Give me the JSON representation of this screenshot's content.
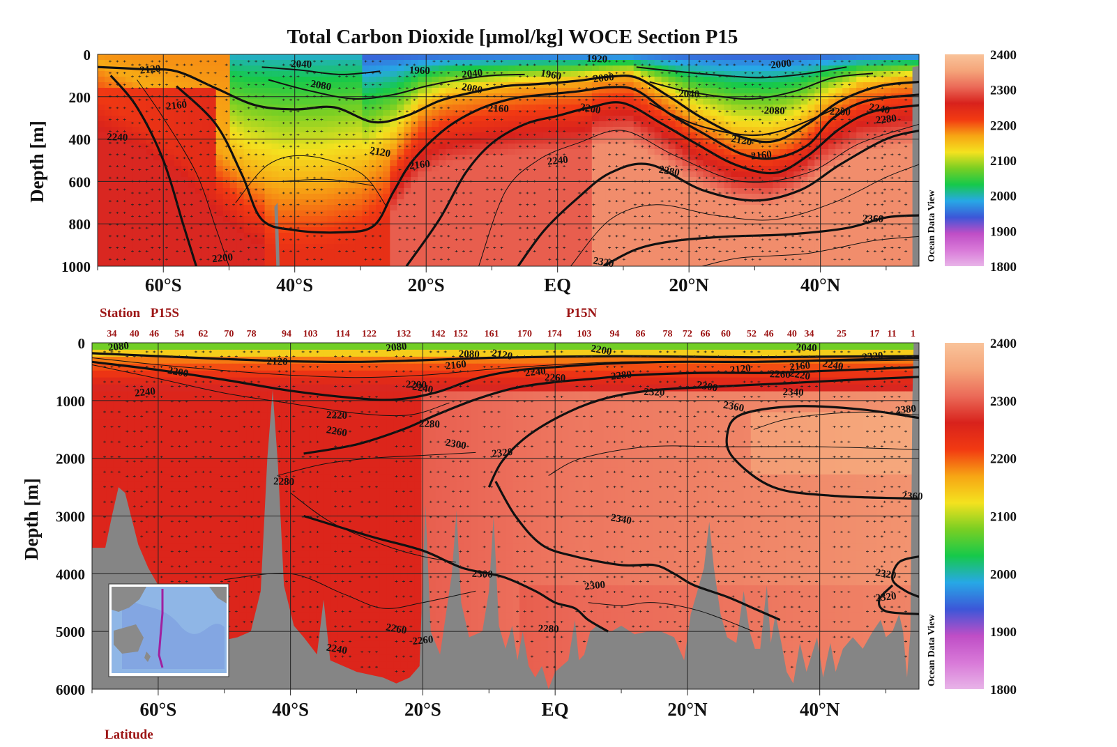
{
  "title": "Total Carbon Dioxide [µmol/kg]  WOCE Section P15",
  "colors": {
    "land": "#858585",
    "scale": [
      "#e8b4e8",
      "#d879d8",
      "#bf4ec6",
      "#3c57d8",
      "#27a8e6",
      "#16c94a",
      "#7acf23",
      "#f4e21f",
      "#f7a514",
      "#f23a12",
      "#d8221c",
      "#eb6a58",
      "#f5a57a",
      "#f9c39a"
    ],
    "station_text": "#9c1414",
    "contour": "#111111"
  },
  "watermark": "Ocean Data View",
  "chart_data": [
    {
      "type": "heatmap",
      "id": "upper-panel",
      "ylabel": "Depth [m]",
      "yticks": [
        "0",
        "200",
        "400",
        "600",
        "800",
        "1000"
      ],
      "ylim": [
        1000,
        0
      ],
      "xlim": [
        -70,
        55
      ],
      "xticks": [
        {
          "value": -60,
          "label": "60°S"
        },
        {
          "value": -40,
          "label": "40°S"
        },
        {
          "value": -20,
          "label": "20°S"
        },
        {
          "value": 0,
          "label": "EQ"
        },
        {
          "value": 20,
          "label": "20°N"
        },
        {
          "value": 40,
          "label": "40°N"
        }
      ],
      "colorbar": {
        "range": [
          1800,
          2400
        ],
        "ticks": [
          "2400",
          "2300",
          "2200",
          "2100",
          "2000",
          "1900",
          "1800"
        ]
      },
      "grid": true,
      "contour_labels": [
        {
          "lat": -62,
          "depth": 70,
          "value": "2120"
        },
        {
          "lat": -39,
          "depth": 45,
          "value": "2040"
        },
        {
          "lat": -36,
          "depth": 145,
          "value": "2080"
        },
        {
          "lat": -58,
          "depth": 240,
          "value": "2160"
        },
        {
          "lat": -67,
          "depth": 390,
          "value": "2240"
        },
        {
          "lat": -27,
          "depth": 460,
          "value": "2120"
        },
        {
          "lat": -21,
          "depth": 520,
          "value": "2160"
        },
        {
          "lat": -21,
          "depth": 75,
          "value": "1960"
        },
        {
          "lat": -13,
          "depth": 160,
          "value": "2080"
        },
        {
          "lat": -13,
          "depth": 90,
          "value": "2040"
        },
        {
          "lat": -9,
          "depth": 255,
          "value": "2160"
        },
        {
          "lat": -1,
          "depth": 95,
          "value": "1960"
        },
        {
          "lat": 7,
          "depth": 110,
          "value": "2000"
        },
        {
          "lat": 6,
          "depth": 20,
          "value": "1920"
        },
        {
          "lat": 5,
          "depth": 255,
          "value": "2200"
        },
        {
          "lat": 0,
          "depth": 500,
          "value": "2240"
        },
        {
          "lat": 20,
          "depth": 185,
          "value": "2040"
        },
        {
          "lat": 17,
          "depth": 550,
          "value": "2280"
        },
        {
          "lat": 34,
          "depth": 45,
          "value": "2000"
        },
        {
          "lat": 33,
          "depth": 265,
          "value": "2080"
        },
        {
          "lat": 28,
          "depth": 405,
          "value": "2120"
        },
        {
          "lat": 31,
          "depth": 475,
          "value": "2160"
        },
        {
          "lat": 43,
          "depth": 270,
          "value": "2200"
        },
        {
          "lat": 49,
          "depth": 255,
          "value": "2240"
        },
        {
          "lat": 50,
          "depth": 305,
          "value": "2280"
        },
        {
          "lat": 48,
          "depth": 775,
          "value": "2360"
        },
        {
          "lat": 7,
          "depth": 980,
          "value": "2320"
        },
        {
          "lat": -51,
          "depth": 960,
          "value": "2200"
        }
      ]
    },
    {
      "type": "heatmap",
      "id": "lower-panel",
      "ylabel": "Depth [m]",
      "yticks": [
        "0",
        "1000",
        "2000",
        "3000",
        "4000",
        "5000",
        "6000"
      ],
      "ylim": [
        6000,
        0
      ],
      "xlim": [
        -70,
        55
      ],
      "xticks": [
        {
          "value": -60,
          "label": "60°S"
        },
        {
          "value": -40,
          "label": "40°S"
        },
        {
          "value": -20,
          "label": "20°S"
        },
        {
          "value": 0,
          "label": "EQ"
        },
        {
          "value": 20,
          "label": "20°N"
        },
        {
          "value": 40,
          "label": "40°N"
        }
      ],
      "xlabel": "Latitude",
      "colorbar": {
        "range": [
          1800,
          2400
        ],
        "ticks": [
          "2400",
          "2300",
          "2200",
          "2100",
          "2000",
          "1900",
          "1800"
        ]
      },
      "grid": true,
      "station_label": "Station",
      "section_labels": [
        {
          "lat": -59,
          "text": "P15S"
        },
        {
          "lat": 4,
          "text": "P15N"
        }
      ],
      "stations": [
        {
          "lat": -67,
          "label": "34"
        },
        {
          "lat": -63.6,
          "label": "40"
        },
        {
          "lat": -60.6,
          "label": "46"
        },
        {
          "lat": -56.8,
          "label": "54"
        },
        {
          "lat": -53.2,
          "label": "62"
        },
        {
          "lat": -49.3,
          "label": "70"
        },
        {
          "lat": -45.9,
          "label": "78"
        },
        {
          "lat": -40.6,
          "label": "94"
        },
        {
          "lat": -37,
          "label": "103"
        },
        {
          "lat": -32.1,
          "label": "114"
        },
        {
          "lat": -28.1,
          "label": "122"
        },
        {
          "lat": -22.9,
          "label": "132"
        },
        {
          "lat": -17.7,
          "label": "142"
        },
        {
          "lat": -14.3,
          "label": "152"
        },
        {
          "lat": -9.6,
          "label": "161"
        },
        {
          "lat": -4.6,
          "label": "170"
        },
        {
          "lat": -0.1,
          "label": "174"
        },
        {
          "lat": 4.4,
          "label": "103"
        },
        {
          "lat": 9,
          "label": "94"
        },
        {
          "lat": 12.9,
          "label": "86"
        },
        {
          "lat": 17,
          "label": "78"
        },
        {
          "lat": 20,
          "label": "72"
        },
        {
          "lat": 22.7,
          "label": "66"
        },
        {
          "lat": 25.8,
          "label": "60"
        },
        {
          "lat": 29.7,
          "label": "52"
        },
        {
          "lat": 32.3,
          "label": "46"
        },
        {
          "lat": 35.8,
          "label": "40"
        },
        {
          "lat": 38.4,
          "label": "34"
        },
        {
          "lat": 43.3,
          "label": "25"
        },
        {
          "lat": 48.3,
          "label": "17"
        },
        {
          "lat": 50.9,
          "label": "11"
        },
        {
          "lat": 54.1,
          "label": "1"
        }
      ],
      "contour_labels": [
        {
          "lat": -66,
          "depth": 60,
          "value": "2080"
        },
        {
          "lat": -42,
          "depth": 320,
          "value": "2120"
        },
        {
          "lat": -57,
          "depth": 500,
          "value": "2200"
        },
        {
          "lat": -62,
          "depth": 850,
          "value": "2240"
        },
        {
          "lat": -33,
          "depth": 1250,
          "value": "2220"
        },
        {
          "lat": -33,
          "depth": 1530,
          "value": "2260"
        },
        {
          "lat": -24,
          "depth": 70,
          "value": "2080"
        },
        {
          "lat": -21,
          "depth": 720,
          "value": "2200"
        },
        {
          "lat": -20,
          "depth": 780,
          "value": "2240"
        },
        {
          "lat": -15,
          "depth": 380,
          "value": "2160"
        },
        {
          "lat": -19,
          "depth": 1400,
          "value": "2280"
        },
        {
          "lat": -15,
          "depth": 1750,
          "value": "2300"
        },
        {
          "lat": -8,
          "depth": 1900,
          "value": "2320"
        },
        {
          "lat": -13,
          "depth": 190,
          "value": "2080"
        },
        {
          "lat": -8,
          "depth": 200,
          "value": "2120"
        },
        {
          "lat": -3,
          "depth": 500,
          "value": "2240"
        },
        {
          "lat": 0,
          "depth": 600,
          "value": "2260"
        },
        {
          "lat": 7,
          "depth": 120,
          "value": "2200"
        },
        {
          "lat": 10,
          "depth": 560,
          "value": "2280"
        },
        {
          "lat": 15,
          "depth": 850,
          "value": "2320"
        },
        {
          "lat": 23,
          "depth": 750,
          "value": "2300"
        },
        {
          "lat": 28,
          "depth": 450,
          "value": "2120"
        },
        {
          "lat": 34,
          "depth": 540,
          "value": "2260"
        },
        {
          "lat": 37,
          "depth": 550,
          "value": "2220"
        },
        {
          "lat": 37,
          "depth": 400,
          "value": "2160"
        },
        {
          "lat": 38,
          "depth": 80,
          "value": "2040"
        },
        {
          "lat": 42,
          "depth": 380,
          "value": "2240"
        },
        {
          "lat": 48,
          "depth": 230,
          "value": "2320"
        },
        {
          "lat": 36,
          "depth": 850,
          "value": "2340"
        },
        {
          "lat": 27,
          "depth": 1100,
          "value": "2360"
        },
        {
          "lat": 53,
          "depth": 1150,
          "value": "2380"
        },
        {
          "lat": 54,
          "depth": 2650,
          "value": "2360"
        },
        {
          "lat": 10,
          "depth": 3050,
          "value": "2340"
        },
        {
          "lat": 6,
          "depth": 4200,
          "value": "2300"
        },
        {
          "lat": -11,
          "depth": 4000,
          "value": "2300"
        },
        {
          "lat": -24,
          "depth": 4950,
          "value": "2260"
        },
        {
          "lat": -20,
          "depth": 5150,
          "value": "2260"
        },
        {
          "lat": -1,
          "depth": 4950,
          "value": "2280"
        },
        {
          "lat": 50,
          "depth": 4000,
          "value": "2320"
        },
        {
          "lat": 50,
          "depth": 4400,
          "value": "2320"
        },
        {
          "lat": -41,
          "depth": 2400,
          "value": "2280"
        },
        {
          "lat": -33,
          "depth": 5300,
          "value": "2240"
        }
      ]
    }
  ]
}
